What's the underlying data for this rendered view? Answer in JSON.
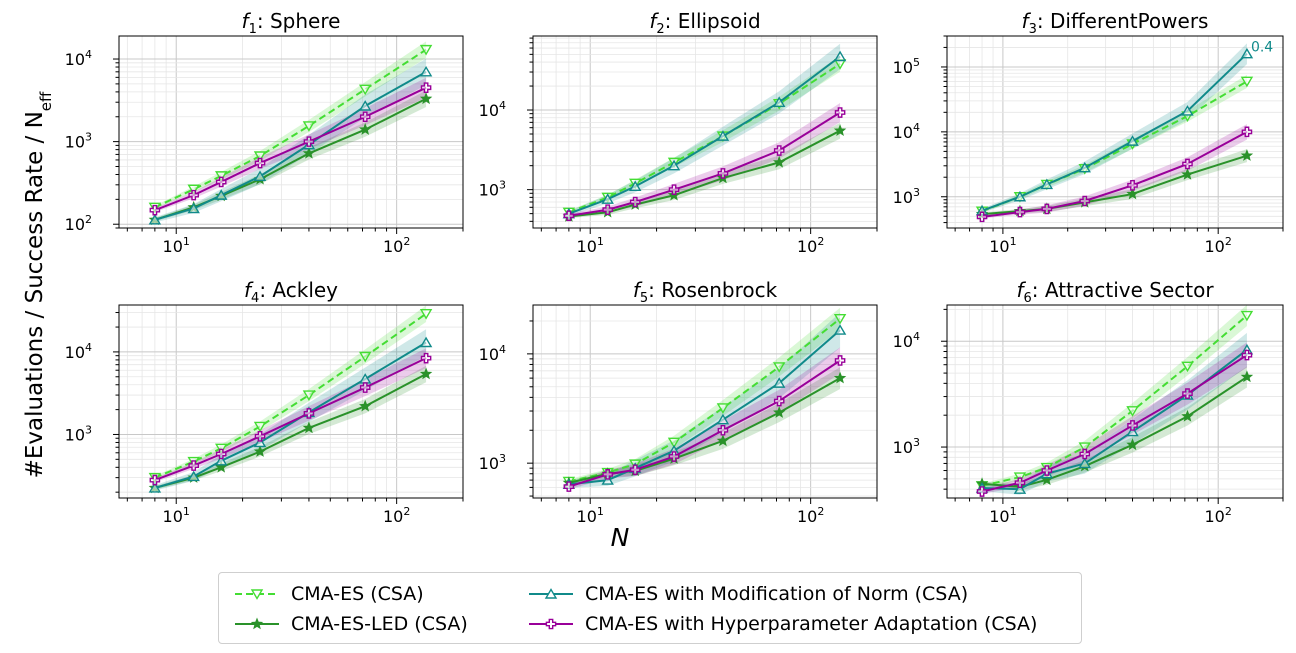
{
  "figure": {
    "ylabel": "#Evaluations / Success Rate / N",
    "ylabel_sub": "eff",
    "xlabel": "N"
  },
  "legend": {
    "items": [
      {
        "label": "CMA-ES (CSA)",
        "series": 0
      },
      {
        "label": "CMA-ES-LED (CSA)",
        "series": 1
      },
      {
        "label": "CMA-ES with Modification of Norm (CSA)",
        "series": 2
      },
      {
        "label": "CMA-ES with Hyperparameter Adaptation (CSA)",
        "series": 3
      }
    ]
  },
  "series_style": [
    {
      "name": "CMA-ES (CSA)",
      "color": "#44dd33",
      "marker": "triangle-down",
      "dash": true
    },
    {
      "name": "CMA-ES-LED (CSA)",
      "color": "#2a922a",
      "marker": "star",
      "dash": false
    },
    {
      "name": "CMA-ES with Modification of Norm (CSA)",
      "color": "#108a8a",
      "marker": "triangle-up",
      "dash": false
    },
    {
      "name": "CMA-ES with Hyperparameter Adaptation (CSA)",
      "color": "#990099",
      "marker": "plus",
      "dash": false
    }
  ],
  "chart_data": [
    {
      "type": "line",
      "title_f": "f",
      "title_idx": "1",
      "title_rest": ": Sphere",
      "xscale": "log",
      "yscale": "log",
      "xlim": [
        5.5,
        200
      ],
      "ylim": [
        90,
        19000
      ],
      "x": [
        8,
        12,
        16,
        24,
        40,
        72,
        136
      ],
      "series": [
        {
          "name": "CMA-ES (CSA)",
          "values": [
            160,
            265,
            385,
            670,
            1550,
            4300,
            13000
          ]
        },
        {
          "name": "CMA-ES-LED (CSA)",
          "values": [
            113,
            160,
            220,
            350,
            720,
            1400,
            3300
          ]
        },
        {
          "name": "CMA-ES with Modification of Norm (CSA)",
          "values": [
            113,
            155,
            225,
            380,
            920,
            2700,
            7000
          ]
        },
        {
          "name": "CMA-ES with Hyperparameter Adaptation (CSA)",
          "values": [
            148,
            225,
            325,
            550,
            1000,
            2000,
            4500
          ]
        }
      ]
    },
    {
      "type": "line",
      "title_f": "f",
      "title_idx": "2",
      "title_rest": ": Ellipsoid",
      "xscale": "log",
      "yscale": "log",
      "xlim": [
        5.5,
        200
      ],
      "ylim": [
        330,
        85000
      ],
      "x": [
        8,
        12,
        16,
        24,
        40,
        72,
        136
      ],
      "series": [
        {
          "name": "CMA-ES (CSA)",
          "values": [
            520,
            800,
            1200,
            2200,
            4700,
            12000,
            38000
          ]
        },
        {
          "name": "CMA-ES-LED (CSA)",
          "values": [
            460,
            520,
            650,
            850,
            1400,
            2200,
            5500
          ]
        },
        {
          "name": "CMA-ES with Modification of Norm (CSA)",
          "values": [
            500,
            760,
            1100,
            2000,
            4700,
            12500,
            47000
          ]
        },
        {
          "name": "CMA-ES with Hyperparameter Adaptation (CSA)",
          "values": [
            470,
            560,
            700,
            1000,
            1600,
            3100,
            9300
          ]
        }
      ]
    },
    {
      "type": "line",
      "title_f": "f",
      "title_idx": "3",
      "title_rest": ": DifferentPowers",
      "xscale": "log",
      "yscale": "log",
      "xlim": [
        5.5,
        200
      ],
      "ylim": [
        330,
        300000
      ],
      "x": [
        8,
        12,
        16,
        24,
        40,
        72,
        136
      ],
      "series": [
        {
          "name": "CMA-ES (CSA)",
          "values": [
            600,
            1000,
            1550,
            2700,
            6500,
            17500,
            60000
          ]
        },
        {
          "name": "CMA-ES-LED (CSA)",
          "values": [
            540,
            600,
            650,
            820,
            1100,
            2200,
            4300
          ]
        },
        {
          "name": "CMA-ES with Modification of Norm (CSA)",
          "values": [
            610,
            1000,
            1550,
            2800,
            7200,
            21000,
            160000
          ]
        },
        {
          "name": "CMA-ES with Hyperparameter Adaptation (CSA)",
          "values": [
            490,
            580,
            650,
            860,
            1500,
            3200,
            10000
          ]
        }
      ],
      "annotation": "0.4"
    },
    {
      "type": "line",
      "title_f": "f",
      "title_idx": "4",
      "title_rest": ": Ackley",
      "xscale": "log",
      "yscale": "log",
      "xlim": [
        5.5,
        200
      ],
      "ylim": [
        170,
        37000
      ],
      "x": [
        8,
        12,
        16,
        24,
        40,
        72,
        136
      ],
      "series": [
        {
          "name": "CMA-ES (CSA)",
          "values": [
            300,
            470,
            680,
            1250,
            3000,
            8800,
            29000
          ]
        },
        {
          "name": "CMA-ES-LED (CSA)",
          "values": [
            225,
            300,
            400,
            620,
            1200,
            2200,
            5400
          ]
        },
        {
          "name": "CMA-ES with Modification of Norm (CSA)",
          "values": [
            225,
            310,
            480,
            800,
            1850,
            4700,
            13000
          ]
        },
        {
          "name": "CMA-ES with Hyperparameter Adaptation (CSA)",
          "values": [
            280,
            420,
            580,
            950,
            1800,
            3700,
            8400
          ]
        }
      ]
    },
    {
      "type": "line",
      "title_f": "f",
      "title_idx": "5",
      "title_rest": ": Rosenbrock",
      "xscale": "log",
      "yscale": "log",
      "xlim": [
        5.5,
        200
      ],
      "ylim": [
        480,
        28000
      ],
      "x": [
        8,
        12,
        16,
        24,
        40,
        72,
        136
      ],
      "series": [
        {
          "name": "CMA-ES (CSA)",
          "values": [
            680,
            820,
            980,
            1550,
            3200,
            7600,
            21000
          ]
        },
        {
          "name": "CMA-ES-LED (CSA)",
          "values": [
            660,
            800,
            850,
            1100,
            1600,
            2900,
            6000
          ]
        },
        {
          "name": "CMA-ES with Modification of Norm (CSA)",
          "values": [
            640,
            700,
            900,
            1300,
            2500,
            5400,
            16500
          ]
        },
        {
          "name": "CMA-ES with Hyperparameter Adaptation (CSA)",
          "values": [
            610,
            790,
            870,
            1150,
            2000,
            3700,
            8700
          ]
        }
      ]
    },
    {
      "type": "line",
      "title_f": "f",
      "title_idx": "6",
      "title_rest": ": Attractive Sector",
      "xscale": "log",
      "yscale": "log",
      "xlim": [
        5.5,
        200
      ],
      "ylim": [
        330,
        22000
      ],
      "x": [
        8,
        12,
        16,
        24,
        40,
        72,
        136
      ],
      "series": [
        {
          "name": "CMA-ES (CSA)",
          "values": [
            430,
            520,
            640,
            1000,
            2200,
            5800,
            17500
          ]
        },
        {
          "name": "CMA-ES-LED (CSA)",
          "values": [
            450,
            420,
            490,
            660,
            1050,
            1950,
            4600
          ]
        },
        {
          "name": "CMA-ES with Modification of Norm (CSA)",
          "values": [
            410,
            400,
            560,
            700,
            1400,
            3100,
            8300
          ]
        },
        {
          "name": "CMA-ES with Hyperparameter Adaptation (CSA)",
          "values": [
            380,
            460,
            600,
            860,
            1600,
            3200,
            7400
          ]
        }
      ]
    }
  ]
}
